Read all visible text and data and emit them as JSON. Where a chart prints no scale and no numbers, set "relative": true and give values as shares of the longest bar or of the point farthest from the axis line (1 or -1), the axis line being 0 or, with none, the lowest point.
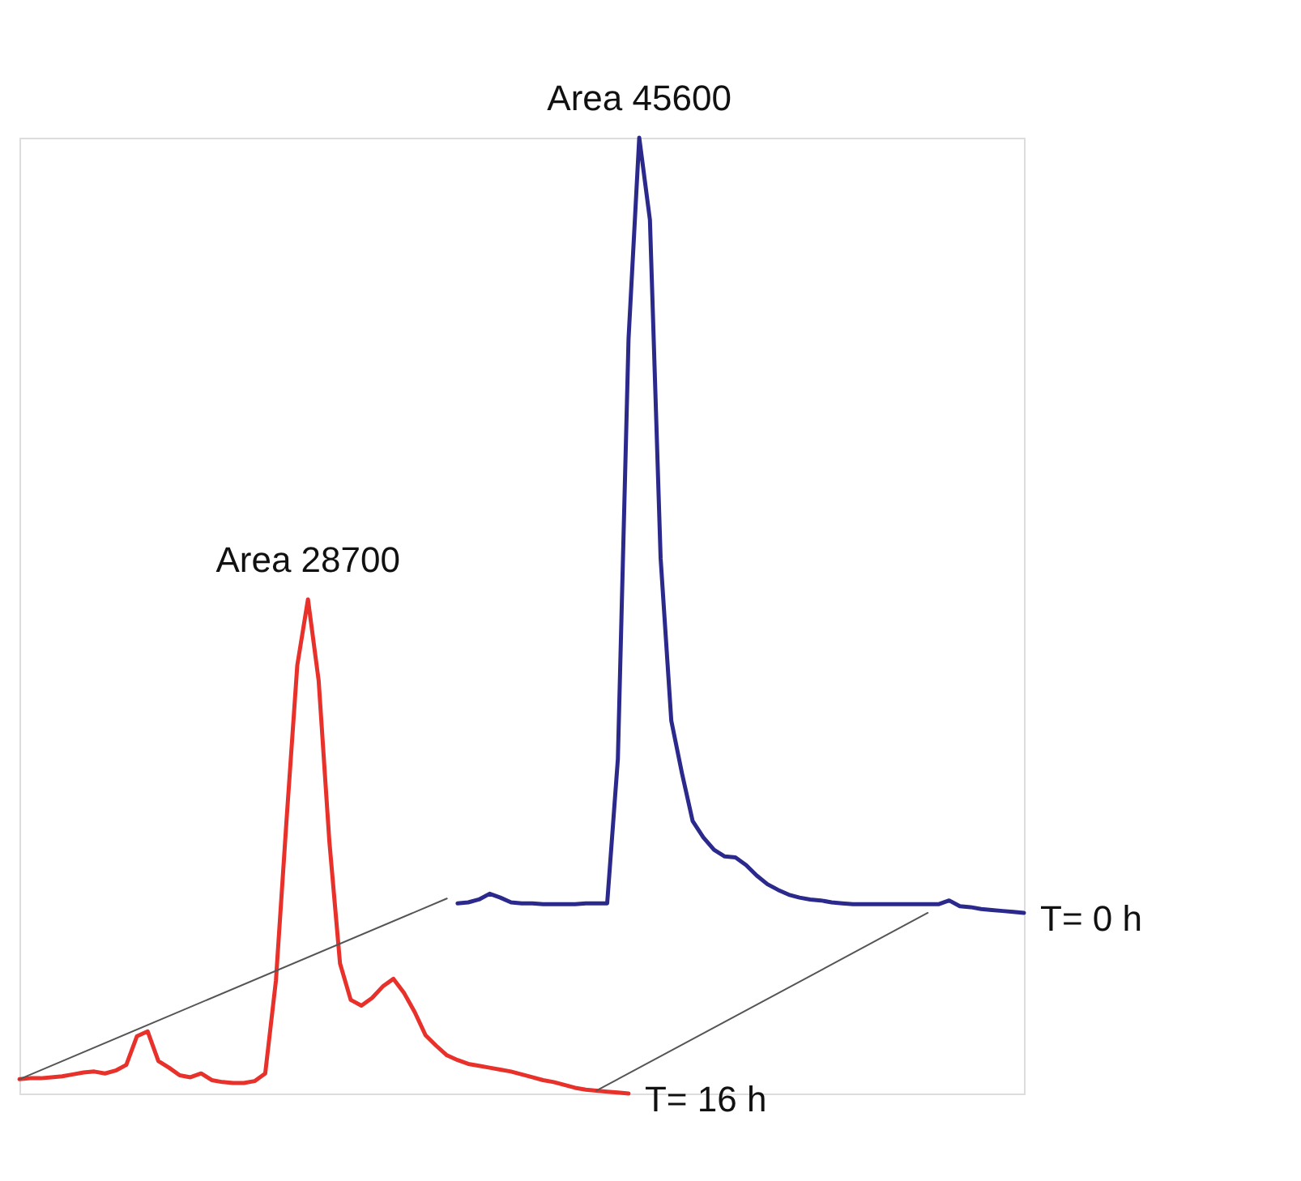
{
  "chart_data": {
    "type": "line",
    "relative": true,
    "line_style": "solid",
    "categories": [
      null,
      null,
      null,
      null,
      null,
      null,
      null,
      null,
      null,
      null,
      null,
      null,
      null,
      null,
      null,
      null,
      null,
      null,
      null,
      null,
      null,
      null,
      null,
      null,
      null,
      null,
      null,
      null,
      null,
      null,
      null,
      null,
      null,
      null,
      null,
      null,
      null,
      null,
      null,
      null,
      null,
      null,
      null,
      null,
      null,
      null,
      null,
      null,
      null,
      null,
      null,
      null,
      null,
      null,
      null,
      null,
      null,
      null,
      null,
      null,
      null,
      null,
      null,
      null,
      null,
      null,
      null,
      null,
      null,
      null,
      null,
      null,
      null,
      null,
      null,
      null,
      null,
      null,
      null,
      null,
      null,
      null,
      null,
      null,
      null,
      null,
      null,
      null,
      null,
      null,
      null,
      null,
      null,
      null,
      null
    ],
    "series": [
      {
        "color": "#e8312a",
        "values": [
          0.015,
          0.016,
          0.016,
          0.017,
          0.018,
          0.02,
          0.022,
          0.023,
          0.021,
          0.024,
          0.03,
          0.06,
          0.065,
          0.034,
          0.027,
          0.019,
          0.017,
          0.021,
          0.014,
          0.012,
          0.011,
          0.011,
          0.013,
          0.021,
          0.118,
          0.287,
          0.448,
          0.517,
          0.432,
          0.264,
          0.136,
          0.098,
          0.092,
          0.1,
          0.112,
          0.12,
          0.105,
          0.085,
          0.061,
          0.05,
          0.04,
          0.035,
          0.031,
          0.029,
          0.027,
          0.025,
          0.023,
          0.02,
          0.017,
          0.014,
          0.012,
          0.009,
          0.006,
          0.004,
          0.003,
          0.002,
          0.001,
          0,
          null,
          null,
          null,
          null,
          null,
          null,
          null,
          null,
          null,
          null,
          null,
          null,
          null,
          null,
          null,
          null,
          null,
          null,
          null,
          null,
          null,
          null,
          null,
          null,
          null,
          null,
          null,
          null,
          null,
          null,
          null,
          null,
          null,
          null,
          null,
          null,
          null
        ]
      },
      {
        "color": "#2b2a8c",
        "values": [
          null,
          null,
          null,
          null,
          null,
          null,
          null,
          null,
          null,
          null,
          null,
          null,
          null,
          null,
          null,
          null,
          null,
          null,
          null,
          null,
          null,
          null,
          null,
          null,
          null,
          null,
          null,
          null,
          null,
          null,
          null,
          null,
          null,
          null,
          null,
          null,
          null,
          null,
          null,
          null,
          null,
          0.199,
          0.2,
          0.203,
          0.209,
          0.205,
          0.2,
          0.199,
          0.199,
          0.198,
          0.198,
          0.198,
          0.198,
          0.199,
          0.199,
          0.199,
          0.35,
          0.79,
          1,
          0.914,
          0.56,
          0.39,
          0.335,
          0.285,
          0.268,
          0.255,
          0.248,
          0.247,
          0.239,
          0.228,
          0.219,
          0.213,
          0.208,
          0.205,
          0.203,
          0.202,
          0.2,
          0.199,
          0.198,
          0.198,
          0.198,
          0.198,
          0.198,
          0.198,
          0.198,
          0.198,
          0.198,
          0.202,
          0.196,
          0.195,
          0.193,
          0.192,
          0.191,
          0.19,
          0.189
        ]
      },
      {
        "color": "#555555",
        "values": [
          0.015,
          null,
          null,
          null,
          null,
          null,
          null,
          null,
          null,
          null,
          null,
          null,
          null,
          null,
          null,
          null,
          null,
          null,
          null,
          null,
          null,
          null,
          null,
          null,
          null,
          null,
          null,
          null,
          null,
          null,
          null,
          null,
          null,
          null,
          null,
          null,
          null,
          null,
          null,
          null,
          0.204,
          null,
          null,
          null,
          null,
          null,
          null,
          null,
          null,
          null,
          null,
          null,
          null,
          null,
          null,
          null,
          null,
          null,
          null,
          null,
          null,
          null,
          null,
          null,
          null,
          null,
          null,
          null,
          null,
          null,
          null,
          null,
          null,
          null,
          null,
          null,
          null,
          null,
          null,
          null,
          null,
          null,
          null,
          null,
          null,
          null,
          null,
          null,
          null,
          null,
          null,
          null,
          null,
          null,
          null
        ]
      },
      {
        "color": "#555555",
        "values": [
          null,
          null,
          null,
          null,
          null,
          null,
          null,
          null,
          null,
          null,
          null,
          null,
          null,
          null,
          null,
          null,
          null,
          null,
          null,
          null,
          null,
          null,
          null,
          null,
          null,
          null,
          null,
          null,
          null,
          null,
          null,
          null,
          null,
          null,
          null,
          null,
          null,
          null,
          null,
          null,
          null,
          null,
          null,
          null,
          null,
          null,
          null,
          null,
          null,
          null,
          null,
          null,
          null,
          null,
          0.003,
          null,
          null,
          null,
          null,
          null,
          null,
          null,
          null,
          null,
          null,
          null,
          null,
          null,
          null,
          null,
          null,
          null,
          null,
          null,
          null,
          null,
          null,
          null,
          null,
          null,
          null,
          null,
          null,
          null,
          null,
          0.189,
          null,
          null,
          null,
          null,
          null,
          null,
          null,
          null,
          null
        ]
      }
    ],
    "annotations": [
      {
        "text": "Area 45600",
        "y": 1
      },
      {
        "text": "Area 28700",
        "y": 0.517
      },
      "T= 16 h",
      "T= 0 h"
    ]
  }
}
